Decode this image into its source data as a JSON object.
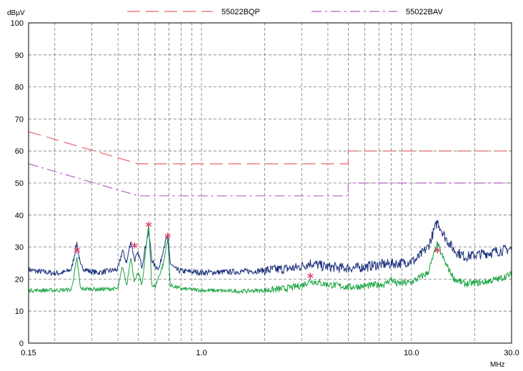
{
  "chart_data": {
    "type": "line",
    "ylabel_unit": "dBµV",
    "xlabel_unit": "MHz",
    "xscale": "log",
    "xlim": [
      0.15,
      30.0
    ],
    "ylim": [
      0,
      100
    ],
    "x_tick_labels": [
      "0.15",
      "1.0",
      "10.0",
      "30.0"
    ],
    "x_tick_values": [
      0.15,
      1.0,
      10.0,
      30.0
    ],
    "y_ticks": [
      0,
      10,
      20,
      30,
      40,
      50,
      60,
      70,
      80,
      90,
      100
    ],
    "grid": true,
    "legend_position": "top",
    "series": [
      {
        "name": "55022BQP",
        "style": "long-dash",
        "color": "#e8636b",
        "points": [
          [
            0.15,
            66
          ],
          [
            0.5,
            56
          ],
          [
            5.0,
            56
          ],
          [
            5.0,
            60
          ],
          [
            30.0,
            60
          ]
        ]
      },
      {
        "name": "55022BAV",
        "style": "dash-dot",
        "color": "#b35fc2",
        "points": [
          [
            0.15,
            56
          ],
          [
            0.5,
            46
          ],
          [
            5.0,
            46
          ],
          [
            5.0,
            50
          ],
          [
            30.0,
            50
          ]
        ]
      }
    ],
    "trace_peak": {
      "color": "#1a2f7a",
      "points": [
        [
          0.15,
          23
        ],
        [
          0.16,
          22.5
        ],
        [
          0.18,
          22.2
        ],
        [
          0.2,
          21.8
        ],
        [
          0.22,
          22
        ],
        [
          0.24,
          23
        ],
        [
          0.255,
          31.5
        ],
        [
          0.265,
          24
        ],
        [
          0.29,
          22.5
        ],
        [
          0.32,
          22
        ],
        [
          0.36,
          22.5
        ],
        [
          0.4,
          23
        ],
        [
          0.42,
          29
        ],
        [
          0.44,
          25
        ],
        [
          0.46,
          32
        ],
        [
          0.48,
          26
        ],
        [
          0.5,
          28
        ],
        [
          0.52,
          24
        ],
        [
          0.54,
          30
        ],
        [
          0.56,
          35
        ],
        [
          0.58,
          26
        ],
        [
          0.6,
          24
        ],
        [
          0.63,
          23.5
        ],
        [
          0.66,
          30
        ],
        [
          0.69,
          33.5
        ],
        [
          0.71,
          25
        ],
        [
          0.75,
          23
        ],
        [
          0.8,
          22.5
        ],
        [
          0.9,
          22.3
        ],
        [
          1.0,
          22
        ],
        [
          1.3,
          22.2
        ],
        [
          1.8,
          22.5
        ],
        [
          2.3,
          23
        ],
        [
          2.8,
          23.5
        ],
        [
          3.3,
          25
        ],
        [
          3.8,
          24
        ],
        [
          4.5,
          23.5
        ],
        [
          5.5,
          23.5
        ],
        [
          7,
          24.5
        ],
        [
          9,
          25
        ],
        [
          10.5,
          26
        ],
        [
          12,
          30
        ],
        [
          13.3,
          38
        ],
        [
          14.5,
          33
        ],
        [
          16,
          29
        ],
        [
          18,
          27
        ],
        [
          20,
          27.5
        ],
        [
          25,
          28.5
        ],
        [
          30,
          29.5
        ]
      ]
    },
    "trace_average": {
      "color": "#17a23f",
      "points": [
        [
          0.15,
          16.5
        ],
        [
          0.2,
          16.5
        ],
        [
          0.24,
          16.7
        ],
        [
          0.255,
          26.5
        ],
        [
          0.265,
          17
        ],
        [
          0.32,
          16.8
        ],
        [
          0.4,
          17
        ],
        [
          0.42,
          24
        ],
        [
          0.44,
          18
        ],
        [
          0.46,
          27
        ],
        [
          0.48,
          19
        ],
        [
          0.5,
          22
        ],
        [
          0.52,
          18
        ],
        [
          0.56,
          37
        ],
        [
          0.58,
          18
        ],
        [
          0.6,
          17.5
        ],
        [
          0.66,
          25
        ],
        [
          0.69,
          33
        ],
        [
          0.71,
          18
        ],
        [
          0.8,
          17
        ],
        [
          1.0,
          16.5
        ],
        [
          1.5,
          16.2
        ],
        [
          2.0,
          16.5
        ],
        [
          2.5,
          17
        ],
        [
          3.0,
          18
        ],
        [
          3.3,
          19.5
        ],
        [
          3.8,
          18.5
        ],
        [
          5.0,
          17.5
        ],
        [
          6.0,
          17.8
        ],
        [
          7.5,
          18.5
        ],
        [
          8.0,
          20
        ],
        [
          8.5,
          18.5
        ],
        [
          10,
          19
        ],
        [
          12,
          22
        ],
        [
          13.3,
          31
        ],
        [
          14.5,
          25
        ],
        [
          16,
          20
        ],
        [
          18,
          18.5
        ],
        [
          22,
          19
        ],
        [
          26,
          20
        ],
        [
          30,
          21.5
        ]
      ]
    },
    "markers": {
      "color": "#e23b6a",
      "points": [
        [
          0.255,
          29
        ],
        [
          0.48,
          30.5
        ],
        [
          0.56,
          37
        ],
        [
          0.69,
          33.5
        ],
        [
          3.3,
          21
        ],
        [
          13.3,
          29
        ]
      ]
    }
  }
}
